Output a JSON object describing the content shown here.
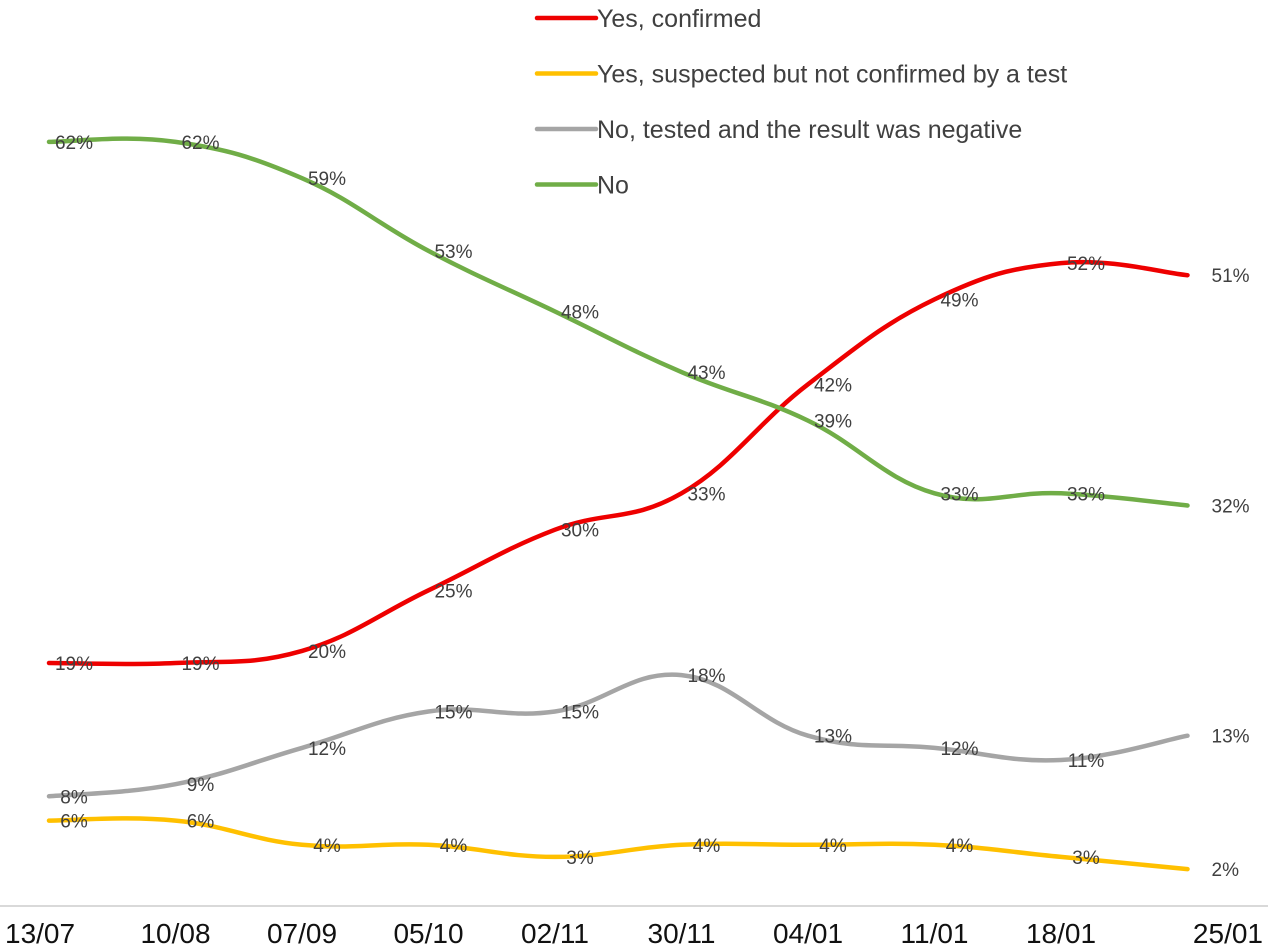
{
  "chart_data": {
    "type": "line",
    "title": "",
    "xlabel": "",
    "ylabel": "",
    "ylim": [
      0,
      70
    ],
    "grid": false,
    "legend_position": "top-right",
    "categories": [
      "13/07",
      "10/08",
      "07/09",
      "05/10",
      "02/11",
      "30/11",
      "04/01",
      "11/01",
      "18/01",
      "25/01"
    ],
    "series": [
      {
        "name": "Yes, confirmed",
        "color": "#ee0000",
        "values": [
          19,
          19,
          20,
          25,
          30,
          33,
          42,
          49,
          52,
          51
        ],
        "labels": [
          "19%",
          "19%",
          "20%",
          "25%",
          "30%",
          "33%",
          "42%",
          "49%",
          "52%",
          "51%"
        ]
      },
      {
        "name": "Yes, suspected but not confirmed by a test",
        "color": "#ffc000",
        "values": [
          6,
          6,
          4,
          4,
          3,
          4,
          4,
          4,
          3,
          2
        ],
        "labels": [
          "6%",
          "6%",
          "4%",
          "4%",
          "3%",
          "4%",
          "4%",
          "4%",
          "3%",
          "2%"
        ]
      },
      {
        "name": "No, tested and the result was negative",
        "color": "#a5a5a5",
        "values": [
          8,
          9,
          12,
          15,
          15,
          18,
          13,
          12,
          11,
          13
        ],
        "labels": [
          "8%",
          "9%",
          "12%",
          "15%",
          "15%",
          "18%",
          "13%",
          "12%",
          "11%",
          "13%"
        ]
      },
      {
        "name": "No",
        "color": "#70ad47",
        "values": [
          62,
          62,
          59,
          53,
          48,
          43,
          39,
          33,
          33,
          32
        ],
        "labels": [
          "62%",
          "62%",
          "59%",
          "53%",
          "48%",
          "43%",
          "39%",
          "33%",
          "33%",
          "32%"
        ]
      }
    ]
  }
}
